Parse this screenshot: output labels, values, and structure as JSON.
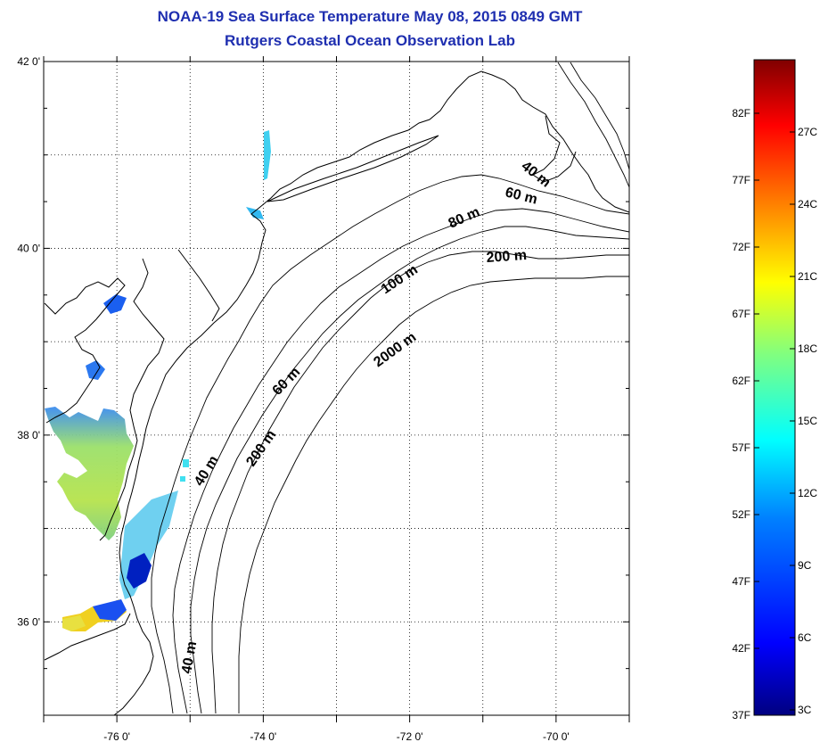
{
  "title": {
    "line1": "NOAA-19 Sea Surface Temperature May 08, 2015 0849 GMT",
    "line2": "Rutgers Coastal Ocean Observation Lab"
  },
  "map": {
    "lat_labels": [
      {
        "lat": 42,
        "text": "42 0'"
      },
      {
        "lat": 40,
        "text": "40 0'"
      },
      {
        "lat": 38,
        "text": "38 0'"
      },
      {
        "lat": 36,
        "text": "36 0'"
      }
    ],
    "lon_labels": [
      {
        "lon": -76,
        "text": "-76 0'"
      },
      {
        "lon": -74,
        "text": "-74 0'"
      },
      {
        "lon": -72,
        "text": "-72 0'"
      },
      {
        "lon": -70,
        "text": "-70 0'"
      }
    ],
    "isobath_labels": [
      "40 m",
      "60 m",
      "80 m",
      "200 m",
      "100 m",
      "2000 m",
      "60 m",
      "200 m",
      "40 m",
      "40 m"
    ]
  },
  "colorbar": {
    "f_labels": [
      "82F",
      "77F",
      "72F",
      "67F",
      "62F",
      "57F",
      "52F",
      "47F",
      "42F",
      "37F"
    ],
    "c_labels": [
      "27C",
      "24C",
      "21C",
      "18C",
      "15C",
      "12C",
      "9C",
      "6C",
      "3C"
    ],
    "colors": [
      "#800000",
      "#ff0000",
      "#ff8000",
      "#ffff00",
      "#80ff80",
      "#00ffff",
      "#0080ff",
      "#0000ff",
      "#000080"
    ]
  }
}
